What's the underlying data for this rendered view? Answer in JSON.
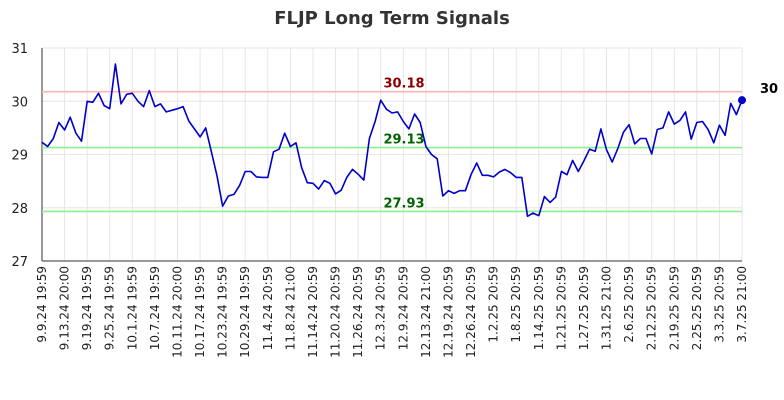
{
  "chart_data": {
    "type": "line",
    "title": "FLJP Long Term Signals",
    "xlabel": "",
    "ylabel": "",
    "ylim": [
      27,
      31
    ],
    "yticks": [
      "27",
      "28",
      "29",
      "30",
      "31"
    ],
    "grid": true,
    "xtick_labels": [
      "9.9.24 19:59",
      "9.13.24 20:00",
      "9.19.24 19:59",
      "9.25.24 19:59",
      "10.1.24 19:59",
      "10.7.24 19:59",
      "10.11.24 20:00",
      "10.17.24 19:59",
      "10.23.24 19:59",
      "10.29.24 19:59",
      "11.4.24 20:59",
      "11.8.24 21:00",
      "11.14.24 20:59",
      "11.20.24 20:59",
      "11.26.24 20:59",
      "12.3.24 20:59",
      "12.9.24 20:59",
      "12.13.24 21:00",
      "12.19.24 20:59",
      "12.26.24 20:59",
      "1.2.25 20:59",
      "1.8.25 20:59",
      "1.14.25 20:59",
      "1.21.25 20:59",
      "1.27.25 20:59",
      "1.31.25 21:00",
      "2.6.25 20:59",
      "2.12.25 20:59",
      "2.19.25 20:59",
      "2.25.25 20:59",
      "3.3.25 20:59",
      "3.7.25 21:00"
    ],
    "reference_lines": [
      {
        "label": "30.18",
        "value": 30.18,
        "color": "#ffb3b3",
        "label_color": "#8b0000"
      },
      {
        "label": "29.13",
        "value": 29.13,
        "color": "#90ee90",
        "label_color": "#006400"
      },
      {
        "label": "27.93",
        "value": 27.93,
        "color": "#90ee90",
        "label_color": "#006400"
      }
    ],
    "last_label": "30",
    "series": [
      {
        "color": "#0000cc",
        "values": [
          29.23,
          29.15,
          29.3,
          29.6,
          29.46,
          29.7,
          29.4,
          29.25,
          30.0,
          29.98,
          30.15,
          29.92,
          29.86,
          30.7,
          29.95,
          30.13,
          30.15,
          30.0,
          29.9,
          30.2,
          29.9,
          29.95,
          29.8,
          29.83,
          29.86,
          29.9,
          29.63,
          29.48,
          29.33,
          29.5,
          29.05,
          28.6,
          28.03,
          28.22,
          28.25,
          28.42,
          28.68,
          28.68,
          28.58,
          28.57,
          28.57,
          29.05,
          29.1,
          29.4,
          29.15,
          29.22,
          28.75,
          28.47,
          28.46,
          28.35,
          28.51,
          28.46,
          28.26,
          28.33,
          28.57,
          28.72,
          28.63,
          28.52,
          29.3,
          29.62,
          30.02,
          29.85,
          29.78,
          29.8,
          29.62,
          29.48,
          29.76,
          29.6,
          29.15,
          29.0,
          28.92,
          28.22,
          28.32,
          28.27,
          28.32,
          28.32,
          28.62,
          28.84,
          28.61,
          28.61,
          28.58,
          28.67,
          28.72,
          28.66,
          28.57,
          28.57,
          27.84,
          27.9,
          27.85,
          28.21,
          28.1,
          28.2,
          28.68,
          28.62,
          28.89,
          28.68,
          28.88,
          29.1,
          29.06,
          29.48,
          29.09,
          28.86,
          29.11,
          29.42,
          29.56,
          29.2,
          29.3,
          29.3,
          29.01,
          29.47,
          29.5,
          29.8,
          29.57,
          29.64,
          29.8,
          29.29,
          29.6,
          29.62,
          29.47,
          29.22,
          29.55,
          29.36,
          29.96,
          29.75,
          30.02
        ]
      }
    ]
  }
}
